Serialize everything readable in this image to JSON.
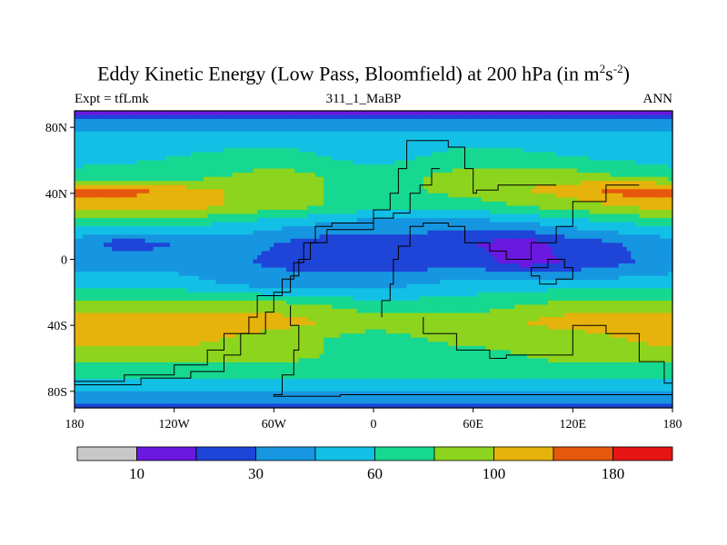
{
  "header": {
    "title_pre": "Eddy Kinetic Energy (Low Pass, Bloomfield) at 200 hPa (in m",
    "title_sup1": "2",
    "title_mid": "s",
    "title_sup2": "-2",
    "title_post": ")",
    "left_label": "Expt = tfLmk",
    "center_label": "311_1_MaBP",
    "right_label": "ANN"
  },
  "chart_data": {
    "type": "heatmap",
    "title": "Eddy Kinetic Energy (Low Pass, Bloomfield) at 200 hPa (in m^2 s^-2)",
    "subtitle_left": "Expt = tfLmk",
    "subtitle_center": "311_1_MaBP",
    "subtitle_right": "ANN",
    "xlim": [
      -180,
      180
    ],
    "ylim": [
      -90,
      90
    ],
    "x_ticks": [
      {
        "value": -180,
        "label": "180"
      },
      {
        "value": -120,
        "label": "120W"
      },
      {
        "value": -60,
        "label": "60W"
      },
      {
        "value": 0,
        "label": "0"
      },
      {
        "value": 60,
        "label": "60E"
      },
      {
        "value": 120,
        "label": "120E"
      },
      {
        "value": 180,
        "label": "180"
      }
    ],
    "y_ticks": [
      {
        "value": 80,
        "label": "80N"
      },
      {
        "value": 40,
        "label": "40N"
      },
      {
        "value": 0,
        "label": "0"
      },
      {
        "value": -40,
        "label": "40S"
      },
      {
        "value": -80,
        "label": "80S"
      }
    ],
    "colorbar": {
      "colors": [
        "#c8c8c8",
        "#6b18e0",
        "#1e44d8",
        "#1696e0",
        "#12c0e6",
        "#16d890",
        "#8cd41e",
        "#e6b20c",
        "#e6580c",
        "#e61414"
      ],
      "tick_labels": [
        {
          "after_box": 1,
          "label": "10"
        },
        {
          "after_box": 3,
          "label": "30"
        },
        {
          "after_box": 5,
          "label": "60"
        },
        {
          "after_box": 7,
          "label": "100"
        },
        {
          "after_box": 9,
          "label": "180"
        }
      ]
    },
    "levels": [
      {
        "lat": 90,
        "lon": [
          -180,
          180
        ],
        "values": [
          1,
          1
        ]
      },
      {
        "lat": 87,
        "lon": [
          -180,
          180
        ],
        "values": [
          2,
          2
        ]
      },
      {
        "lat": 82,
        "lon": [
          -180,
          180
        ],
        "values": [
          3,
          3
        ]
      },
      {
        "lat": 75,
        "lon": [
          -180,
          0,
          60,
          180
        ],
        "values": [
          4,
          4,
          4,
          4
        ]
      },
      {
        "lat": 62,
        "lon": [
          -180,
          -60,
          0,
          60,
          180
        ],
        "values": [
          4,
          5,
          4,
          5,
          4
        ]
      },
      {
        "lat": 50,
        "lon": [
          -180,
          -120,
          -60,
          0,
          60,
          120,
          180
        ],
        "values": [
          5,
          5,
          6,
          5,
          6,
          6,
          5
        ]
      },
      {
        "lat": 42,
        "lon": [
          -180,
          -150,
          -120,
          -60,
          0,
          60,
          120,
          150,
          180
        ],
        "values": [
          8,
          8,
          7,
          6,
          5,
          6,
          7,
          8,
          8
        ]
      },
      {
        "lat": 32,
        "lon": [
          -180,
          -120,
          -60,
          0,
          60,
          120,
          180
        ],
        "values": [
          7,
          7,
          6,
          5,
          5,
          6,
          7
        ]
      },
      {
        "lat": 22,
        "lon": [
          -180,
          -120,
          -60,
          0,
          60,
          120,
          180
        ],
        "values": [
          5,
          5,
          4,
          3,
          3,
          4,
          5
        ]
      },
      {
        "lat": 10,
        "lon": [
          -180,
          -150,
          -90,
          -30,
          30,
          90,
          120,
          180
        ],
        "values": [
          3,
          2,
          3,
          2,
          2,
          1,
          2,
          3
        ]
      },
      {
        "lat": -2,
        "lon": [
          -180,
          -120,
          -30,
          0,
          60,
          90,
          180
        ],
        "values": [
          3,
          3,
          2,
          2,
          2,
          1,
          3
        ]
      },
      {
        "lat": -15,
        "lon": [
          -180,
          -120,
          -60,
          0,
          60,
          120,
          180
        ],
        "values": [
          4,
          4,
          3,
          3,
          4,
          4,
          4
        ]
      },
      {
        "lat": -28,
        "lon": [
          -180,
          -120,
          -60,
          0,
          60,
          120,
          180
        ],
        "values": [
          6,
          6,
          6,
          5,
          5,
          6,
          6
        ]
      },
      {
        "lat": -38,
        "lon": [
          -180,
          -120,
          -60,
          0,
          60,
          120,
          180
        ],
        "values": [
          7,
          7,
          7,
          6,
          6,
          7,
          7
        ]
      },
      {
        "lat": -48,
        "lon": [
          -180,
          -120,
          -60,
          0,
          60,
          120,
          180
        ],
        "values": [
          7,
          7,
          6,
          5,
          6,
          6,
          7
        ]
      },
      {
        "lat": -58,
        "lon": [
          -180,
          -120,
          -60,
          0,
          60,
          120,
          180
        ],
        "values": [
          6,
          6,
          6,
          5,
          5,
          6,
          6
        ]
      },
      {
        "lat": -68,
        "lon": [
          -180,
          180
        ],
        "values": [
          5,
          5
        ]
      },
      {
        "lat": -76,
        "lon": [
          -180,
          180
        ],
        "values": [
          4,
          4
        ]
      },
      {
        "lat": -84,
        "lon": [
          -180,
          180
        ],
        "values": [
          3,
          3
        ]
      },
      {
        "lat": -90,
        "lon": [
          -180,
          180
        ],
        "values": [
          2,
          2
        ]
      }
    ],
    "coastlines": [
      [
        [
          -180,
          -75
        ],
        [
          -150,
          -74
        ],
        [
          -120,
          -70
        ],
        [
          -100,
          -64
        ],
        [
          -90,
          -55
        ],
        [
          -75,
          -45
        ],
        [
          -70,
          -35
        ],
        [
          -55,
          -22
        ],
        [
          -48,
          -12
        ],
        [
          -42,
          -2
        ],
        [
          -35,
          10
        ],
        [
          -25,
          20
        ],
        [
          0,
          22
        ],
        [
          10,
          30
        ],
        [
          15,
          40
        ],
        [
          20,
          55
        ],
        [
          25,
          72
        ],
        [
          45,
          72
        ],
        [
          55,
          68
        ],
        [
          60,
          55
        ],
        [
          62,
          40
        ],
        [
          75,
          42
        ],
        [
          90,
          45
        ],
        [
          110,
          45
        ]
      ],
      [
        [
          -180,
          -78
        ],
        [
          -140,
          -76
        ],
        [
          -110,
          -72
        ],
        [
          -90,
          -68
        ],
        [
          -80,
          -58
        ],
        [
          -65,
          -45
        ],
        [
          -60,
          -32
        ],
        [
          -50,
          -20
        ],
        [
          -45,
          -10
        ],
        [
          -38,
          0
        ],
        [
          -28,
          10
        ],
        [
          -10,
          18
        ],
        [
          0,
          18
        ],
        [
          12,
          25
        ],
        [
          22,
          28
        ],
        [
          28,
          40
        ],
        [
          35,
          45
        ],
        [
          40,
          55
        ]
      ],
      [
        [
          5,
          -35
        ],
        [
          10,
          -25
        ],
        [
          12,
          -15
        ],
        [
          15,
          0
        ],
        [
          22,
          8
        ],
        [
          30,
          20
        ],
        [
          45,
          22
        ],
        [
          55,
          20
        ],
        [
          70,
          10
        ],
        [
          80,
          5
        ],
        [
          95,
          0
        ],
        [
          110,
          10
        ],
        [
          120,
          20
        ],
        [
          140,
          35
        ],
        [
          160,
          45
        ]
      ],
      [
        [
          -50,
          -28
        ],
        [
          -45,
          -40
        ],
        [
          -48,
          -55
        ],
        [
          -55,
          -70
        ],
        [
          -60,
          -82
        ],
        [
          -20,
          -83
        ],
        [
          20,
          -82
        ],
        [
          60,
          -82
        ],
        [
          120,
          -82
        ],
        [
          180,
          -82
        ]
      ],
      [
        [
          30,
          -35
        ],
        [
          50,
          -45
        ],
        [
          70,
          -55
        ],
        [
          80,
          -60
        ],
        [
          120,
          -58
        ],
        [
          140,
          -40
        ],
        [
          160,
          -45
        ],
        [
          175,
          -62
        ],
        [
          180,
          -75
        ]
      ],
      [
        [
          95,
          -5
        ],
        [
          100,
          -10
        ],
        [
          110,
          -15
        ],
        [
          120,
          -12
        ],
        [
          115,
          -5
        ],
        [
          105,
          0
        ],
        [
          95,
          -5
        ]
      ]
    ]
  }
}
